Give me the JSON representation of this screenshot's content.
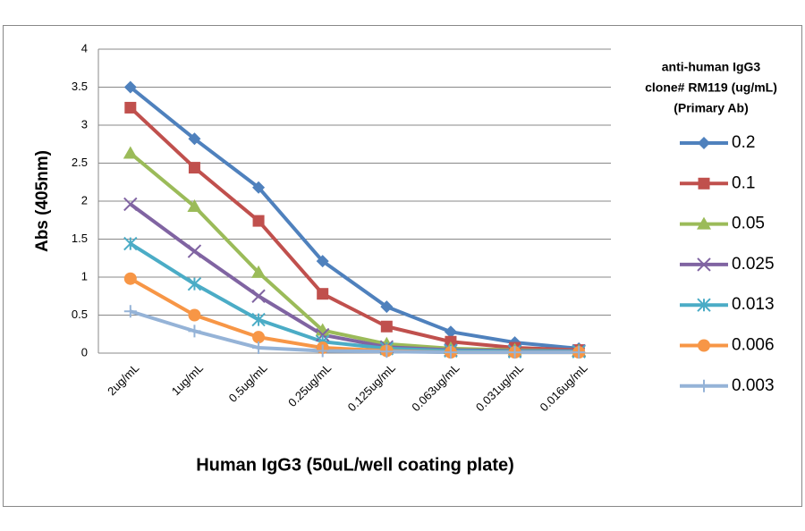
{
  "chart_data": {
    "type": "line",
    "y_label": "Abs (405nm)",
    "x_label": "Human IgG3 (50uL/well coating plate)",
    "legend_title": [
      "anti-human IgG3",
      "clone# RM119 (ug/mL)",
      "(Primary Ab)"
    ],
    "legend_position": "right",
    "grid": true,
    "categories": [
      "2ug/mL",
      "1ug/mL",
      "0.5ug/mL",
      "0.25ug/mL",
      "0.125ug/mL",
      "0.063ug/mL",
      "0.031ug/mL",
      "0.016ug/mL"
    ],
    "ylim": [
      0,
      4
    ],
    "yticks": [
      0,
      0.5,
      1,
      1.5,
      2,
      2.5,
      3,
      3.5,
      4
    ],
    "series": [
      {
        "name": "0.2",
        "color": "#4f81bd",
        "marker": "diamond",
        "values": [
          3.5,
          2.82,
          2.18,
          1.21,
          0.61,
          0.28,
          0.14,
          0.06
        ]
      },
      {
        "name": "0.1",
        "color": "#c0504d",
        "marker": "square",
        "values": [
          3.23,
          2.44,
          1.74,
          0.78,
          0.35,
          0.15,
          0.07,
          0.04
        ]
      },
      {
        "name": "0.05",
        "color": "#9bbb59",
        "marker": "triangle",
        "values": [
          2.63,
          1.93,
          1.06,
          0.3,
          0.12,
          0.06,
          0.04,
          0.03
        ]
      },
      {
        "name": "0.025",
        "color": "#8064a2",
        "marker": "x",
        "values": [
          1.96,
          1.34,
          0.75,
          0.24,
          0.08,
          0.04,
          0.03,
          0.03
        ]
      },
      {
        "name": "0.013",
        "color": "#4bacc6",
        "marker": "star",
        "values": [
          1.44,
          0.91,
          0.44,
          0.15,
          0.06,
          0.03,
          0.02,
          0.02
        ]
      },
      {
        "name": "0.006",
        "color": "#f79646",
        "marker": "circle",
        "values": [
          0.98,
          0.5,
          0.21,
          0.07,
          0.03,
          0.01,
          0.01,
          0.01
        ]
      },
      {
        "name": "0.003",
        "color": "#95b3d7",
        "marker": "plus",
        "values": [
          0.55,
          0.29,
          0.07,
          0.03,
          0.02,
          0.01,
          0.01,
          0.01
        ]
      }
    ]
  }
}
